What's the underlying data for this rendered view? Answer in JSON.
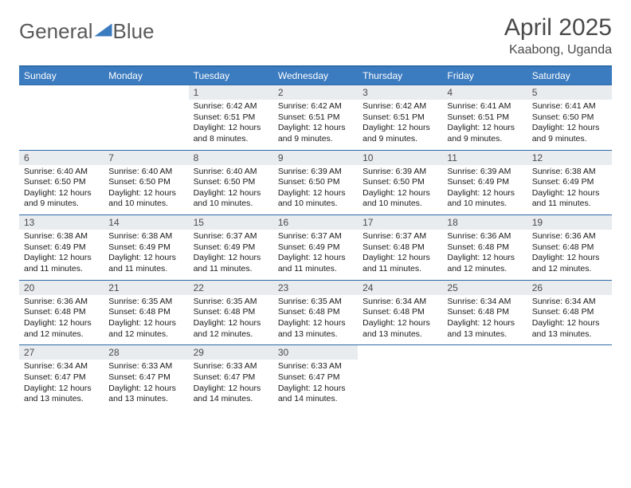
{
  "brand": {
    "part1": "General",
    "part2": "Blue"
  },
  "title": "April 2025",
  "location": "Kaabong, Uganda",
  "colors": {
    "header_bg": "#3b7bbf",
    "header_border": "#2e6aa8",
    "daynum_bg": "#e8ecef",
    "text": "#1a1a1a",
    "muted": "#4a4a4a"
  },
  "day_headers": [
    "Sunday",
    "Monday",
    "Tuesday",
    "Wednesday",
    "Thursday",
    "Friday",
    "Saturday"
  ],
  "weeks": [
    [
      {
        "n": "",
        "sr": "",
        "ss": "",
        "dl": ""
      },
      {
        "n": "",
        "sr": "",
        "ss": "",
        "dl": ""
      },
      {
        "n": "1",
        "sr": "Sunrise: 6:42 AM",
        "ss": "Sunset: 6:51 PM",
        "dl": "Daylight: 12 hours and 8 minutes."
      },
      {
        "n": "2",
        "sr": "Sunrise: 6:42 AM",
        "ss": "Sunset: 6:51 PM",
        "dl": "Daylight: 12 hours and 9 minutes."
      },
      {
        "n": "3",
        "sr": "Sunrise: 6:42 AM",
        "ss": "Sunset: 6:51 PM",
        "dl": "Daylight: 12 hours and 9 minutes."
      },
      {
        "n": "4",
        "sr": "Sunrise: 6:41 AM",
        "ss": "Sunset: 6:51 PM",
        "dl": "Daylight: 12 hours and 9 minutes."
      },
      {
        "n": "5",
        "sr": "Sunrise: 6:41 AM",
        "ss": "Sunset: 6:50 PM",
        "dl": "Daylight: 12 hours and 9 minutes."
      }
    ],
    [
      {
        "n": "6",
        "sr": "Sunrise: 6:40 AM",
        "ss": "Sunset: 6:50 PM",
        "dl": "Daylight: 12 hours and 9 minutes."
      },
      {
        "n": "7",
        "sr": "Sunrise: 6:40 AM",
        "ss": "Sunset: 6:50 PM",
        "dl": "Daylight: 12 hours and 10 minutes."
      },
      {
        "n": "8",
        "sr": "Sunrise: 6:40 AM",
        "ss": "Sunset: 6:50 PM",
        "dl": "Daylight: 12 hours and 10 minutes."
      },
      {
        "n": "9",
        "sr": "Sunrise: 6:39 AM",
        "ss": "Sunset: 6:50 PM",
        "dl": "Daylight: 12 hours and 10 minutes."
      },
      {
        "n": "10",
        "sr": "Sunrise: 6:39 AM",
        "ss": "Sunset: 6:50 PM",
        "dl": "Daylight: 12 hours and 10 minutes."
      },
      {
        "n": "11",
        "sr": "Sunrise: 6:39 AM",
        "ss": "Sunset: 6:49 PM",
        "dl": "Daylight: 12 hours and 10 minutes."
      },
      {
        "n": "12",
        "sr": "Sunrise: 6:38 AM",
        "ss": "Sunset: 6:49 PM",
        "dl": "Daylight: 12 hours and 11 minutes."
      }
    ],
    [
      {
        "n": "13",
        "sr": "Sunrise: 6:38 AM",
        "ss": "Sunset: 6:49 PM",
        "dl": "Daylight: 12 hours and 11 minutes."
      },
      {
        "n": "14",
        "sr": "Sunrise: 6:38 AM",
        "ss": "Sunset: 6:49 PM",
        "dl": "Daylight: 12 hours and 11 minutes."
      },
      {
        "n": "15",
        "sr": "Sunrise: 6:37 AM",
        "ss": "Sunset: 6:49 PM",
        "dl": "Daylight: 12 hours and 11 minutes."
      },
      {
        "n": "16",
        "sr": "Sunrise: 6:37 AM",
        "ss": "Sunset: 6:49 PM",
        "dl": "Daylight: 12 hours and 11 minutes."
      },
      {
        "n": "17",
        "sr": "Sunrise: 6:37 AM",
        "ss": "Sunset: 6:48 PM",
        "dl": "Daylight: 12 hours and 11 minutes."
      },
      {
        "n": "18",
        "sr": "Sunrise: 6:36 AM",
        "ss": "Sunset: 6:48 PM",
        "dl": "Daylight: 12 hours and 12 minutes."
      },
      {
        "n": "19",
        "sr": "Sunrise: 6:36 AM",
        "ss": "Sunset: 6:48 PM",
        "dl": "Daylight: 12 hours and 12 minutes."
      }
    ],
    [
      {
        "n": "20",
        "sr": "Sunrise: 6:36 AM",
        "ss": "Sunset: 6:48 PM",
        "dl": "Daylight: 12 hours and 12 minutes."
      },
      {
        "n": "21",
        "sr": "Sunrise: 6:35 AM",
        "ss": "Sunset: 6:48 PM",
        "dl": "Daylight: 12 hours and 12 minutes."
      },
      {
        "n": "22",
        "sr": "Sunrise: 6:35 AM",
        "ss": "Sunset: 6:48 PM",
        "dl": "Daylight: 12 hours and 12 minutes."
      },
      {
        "n": "23",
        "sr": "Sunrise: 6:35 AM",
        "ss": "Sunset: 6:48 PM",
        "dl": "Daylight: 12 hours and 13 minutes."
      },
      {
        "n": "24",
        "sr": "Sunrise: 6:34 AM",
        "ss": "Sunset: 6:48 PM",
        "dl": "Daylight: 12 hours and 13 minutes."
      },
      {
        "n": "25",
        "sr": "Sunrise: 6:34 AM",
        "ss": "Sunset: 6:48 PM",
        "dl": "Daylight: 12 hours and 13 minutes."
      },
      {
        "n": "26",
        "sr": "Sunrise: 6:34 AM",
        "ss": "Sunset: 6:48 PM",
        "dl": "Daylight: 12 hours and 13 minutes."
      }
    ],
    [
      {
        "n": "27",
        "sr": "Sunrise: 6:34 AM",
        "ss": "Sunset: 6:47 PM",
        "dl": "Daylight: 12 hours and 13 minutes."
      },
      {
        "n": "28",
        "sr": "Sunrise: 6:33 AM",
        "ss": "Sunset: 6:47 PM",
        "dl": "Daylight: 12 hours and 13 minutes."
      },
      {
        "n": "29",
        "sr": "Sunrise: 6:33 AM",
        "ss": "Sunset: 6:47 PM",
        "dl": "Daylight: 12 hours and 14 minutes."
      },
      {
        "n": "30",
        "sr": "Sunrise: 6:33 AM",
        "ss": "Sunset: 6:47 PM",
        "dl": "Daylight: 12 hours and 14 minutes."
      },
      {
        "n": "",
        "sr": "",
        "ss": "",
        "dl": ""
      },
      {
        "n": "",
        "sr": "",
        "ss": "",
        "dl": ""
      },
      {
        "n": "",
        "sr": "",
        "ss": "",
        "dl": ""
      }
    ]
  ]
}
